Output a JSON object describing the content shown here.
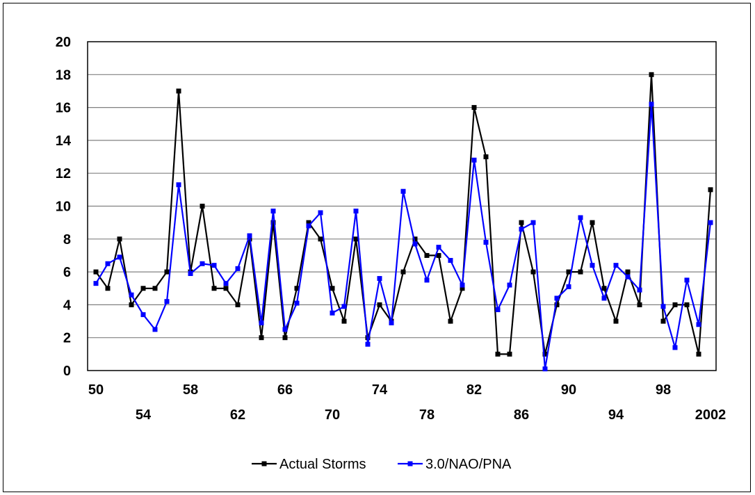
{
  "chart_data": {
    "type": "line",
    "title": "",
    "xlabel": "",
    "ylabel": "",
    "ylim": [
      0,
      20
    ],
    "y_ticks": [
      "0",
      "2",
      "4",
      "6",
      "8",
      "10",
      "12",
      "14",
      "16",
      "18",
      "20"
    ],
    "x": [
      1950,
      1951,
      1952,
      1953,
      1954,
      1955,
      1956,
      1957,
      1958,
      1959,
      1960,
      1961,
      1962,
      1963,
      1964,
      1965,
      1966,
      1967,
      1968,
      1969,
      1970,
      1971,
      1972,
      1973,
      1974,
      1975,
      1976,
      1977,
      1978,
      1979,
      1980,
      1981,
      1982,
      1983,
      1984,
      1985,
      1986,
      1987,
      1988,
      1989,
      1990,
      1991,
      1992,
      1993,
      1994,
      1995,
      1996,
      1997,
      1998,
      1999,
      2000,
      2001,
      2002
    ],
    "x_ticks_row1": [
      "50",
      "58",
      "66",
      "74",
      "82",
      "90",
      "98"
    ],
    "x_ticks_row2": [
      "54",
      "62",
      "70",
      "78",
      "86",
      "94",
      "2002"
    ],
    "grid": "horizontal",
    "legend_position": "bottom",
    "series": [
      {
        "name": "Actual Storms",
        "color": "#000000",
        "values": [
          6,
          5,
          8,
          4,
          5,
          5,
          6,
          17,
          6,
          10,
          5,
          5,
          4,
          8,
          2,
          9,
          2,
          5,
          9,
          8,
          5,
          3,
          8,
          2,
          4,
          3,
          6,
          8,
          7,
          7,
          3,
          5,
          16,
          13,
          1,
          1,
          9,
          6,
          1,
          4,
          6,
          6,
          9,
          5,
          3,
          6,
          4,
          18,
          3,
          4,
          4,
          1,
          11
        ]
      },
      {
        "name": "3.0/NAO/PNA",
        "color": "#0000ff",
        "values": [
          5.3,
          6.5,
          6.9,
          4.6,
          3.4,
          2.5,
          4.2,
          11.3,
          5.9,
          6.5,
          6.4,
          5.3,
          6.2,
          8.2,
          2.9,
          9.7,
          2.5,
          4.1,
          8.8,
          9.6,
          3.5,
          3.9,
          9.7,
          1.6,
          5.6,
          2.9,
          10.9,
          7.7,
          5.5,
          7.5,
          6.7,
          5.2,
          12.8,
          7.8,
          3.7,
          5.2,
          8.6,
          9.0,
          0.1,
          4.4,
          5.1,
          9.3,
          6.4,
          4.4,
          6.4,
          5.7,
          4.9,
          16.2,
          3.9,
          1.4,
          5.5,
          2.8,
          9.0
        ]
      }
    ]
  }
}
